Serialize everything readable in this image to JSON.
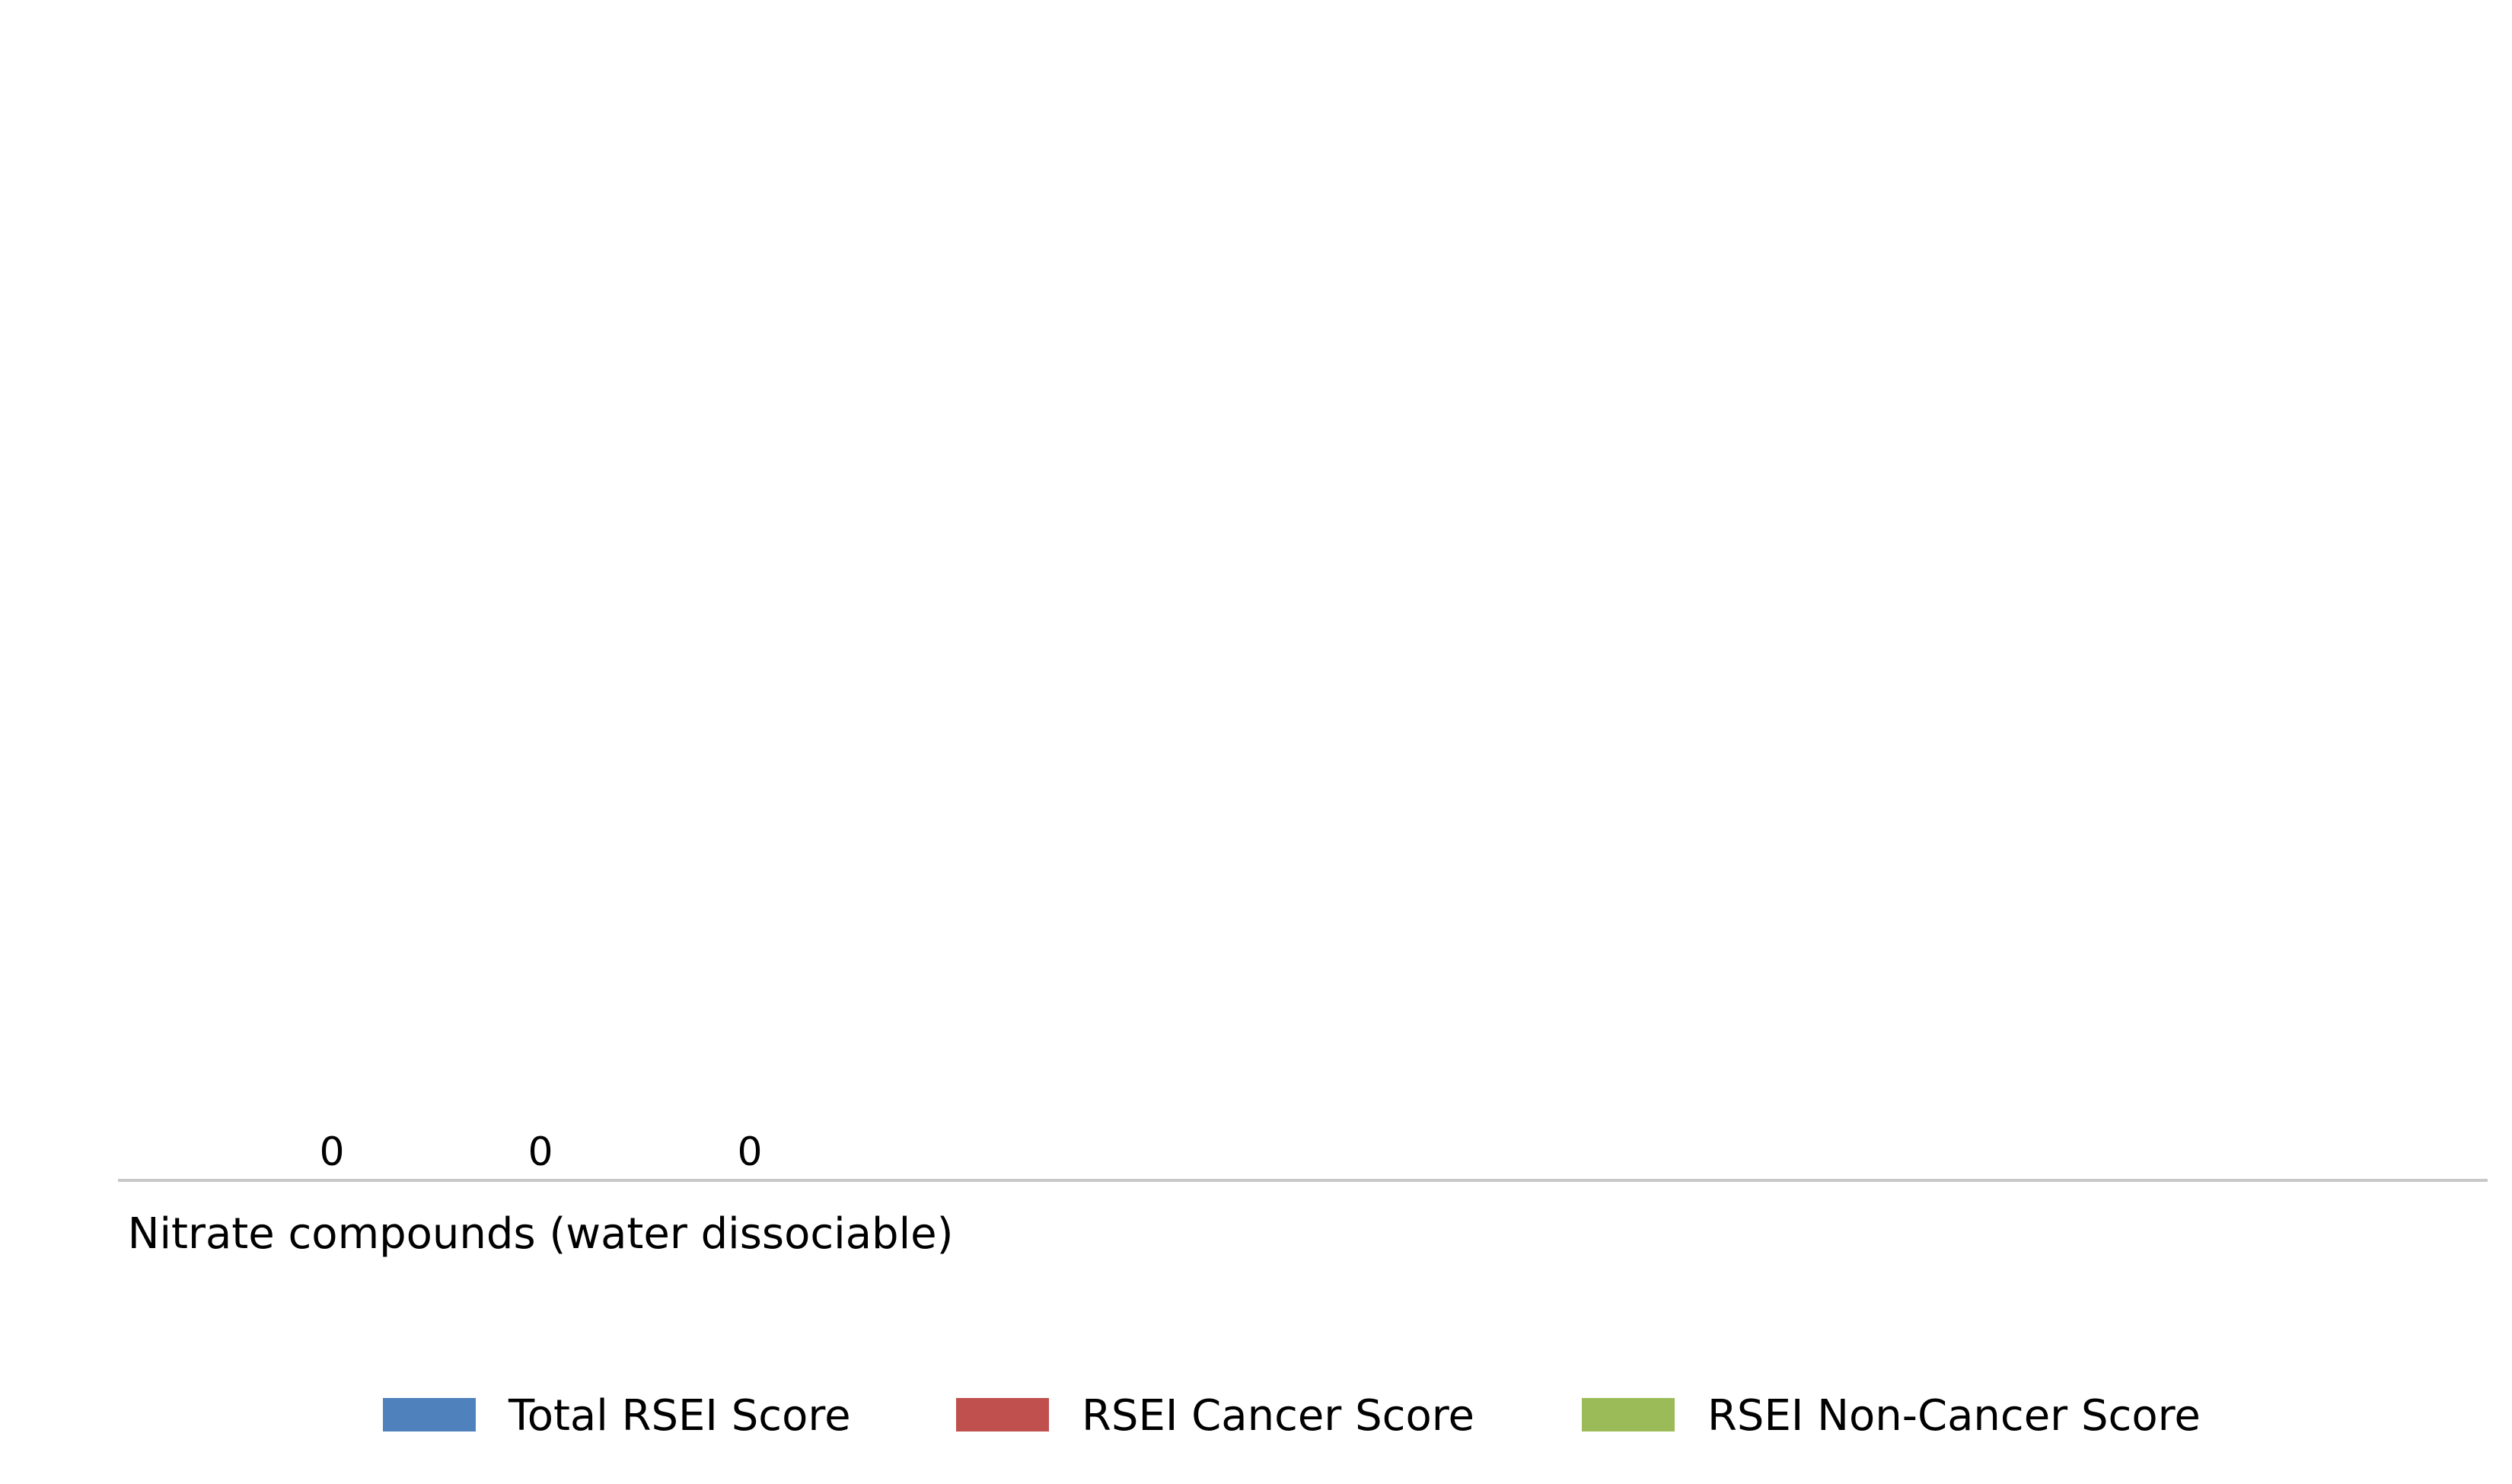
{
  "chart_data": {
    "type": "bar",
    "categories": [
      "Nitrate compounds (water dissociable)"
    ],
    "series": [
      {
        "name": "Total RSEI Score",
        "values": [
          0
        ],
        "color": "#4f81bd"
      },
      {
        "name": "RSEI Cancer Score",
        "values": [
          0
        ],
        "color": "#c0504d"
      },
      {
        "name": "RSEI Non-Cancer Score",
        "values": [
          0
        ],
        "color": "#9bbb59"
      }
    ],
    "data_labels": [
      "0",
      "0",
      "0"
    ],
    "grid": false,
    "legend": "bottom"
  }
}
